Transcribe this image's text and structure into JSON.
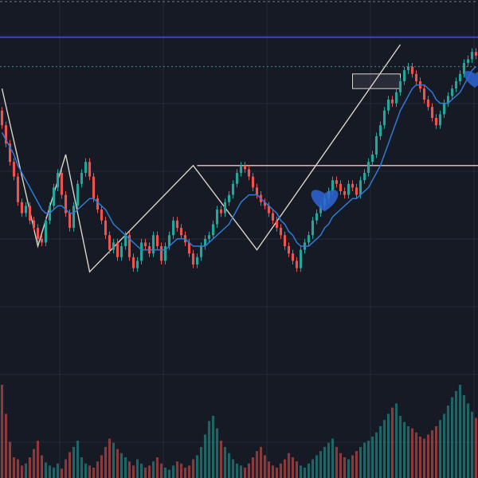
{
  "theme": {
    "background": "#161a25",
    "grid": "#262b38",
    "up": "#26a69a",
    "down": "#ef5350",
    "ma": "#2f7ad6",
    "pattern": "#d8d4c8",
    "hline_blue": "#3b5bdb",
    "hline_teal": "#3f8f87",
    "hline_pink": "#f0c6c6",
    "border_dash": "#9aa0aa",
    "heart": "#2e66d6"
  },
  "chart_data": {
    "type": "candlestick",
    "title": "",
    "xlabel": "",
    "ylabel": "",
    "ylim": [
      0,
      100
    ],
    "volume_ylim": [
      0,
      100
    ],
    "grid": true,
    "x": [
      0,
      1,
      2,
      3,
      4,
      5,
      6,
      7,
      8,
      9,
      10,
      11,
      12,
      13,
      14,
      15,
      16,
      17,
      18,
      19,
      20,
      21,
      22,
      23,
      24,
      25,
      26,
      27,
      28,
      29,
      30,
      31,
      32,
      33,
      34,
      35,
      36,
      37,
      38,
      39,
      40,
      41,
      42,
      43,
      44,
      45,
      46,
      47,
      48,
      49,
      50,
      51,
      52,
      53,
      54,
      55,
      56,
      57,
      58,
      59,
      60,
      61,
      62,
      63,
      64,
      65,
      66,
      67,
      68,
      69,
      70,
      71,
      72,
      73,
      74,
      75,
      76,
      77,
      78,
      79,
      80,
      81,
      82,
      83,
      84,
      85,
      86,
      87,
      88,
      89,
      90,
      91,
      92,
      93,
      94,
      95,
      96,
      97,
      98,
      99,
      100,
      101,
      102,
      103,
      104,
      105,
      106,
      107,
      108,
      109,
      110,
      111,
      112,
      113,
      114,
      115,
      116,
      117,
      118,
      119
    ],
    "open": [
      72,
      68,
      63,
      58,
      54,
      47,
      44,
      46,
      42,
      40,
      37,
      36,
      42,
      46,
      51,
      55,
      49,
      44,
      40,
      46,
      52,
      55,
      58,
      54,
      48,
      45,
      42,
      38,
      34,
      36,
      32,
      35,
      38,
      32,
      29,
      31,
      36,
      35,
      33,
      38,
      35,
      31,
      35,
      38,
      42,
      40,
      38,
      36,
      33,
      30,
      32,
      35,
      37,
      38,
      41,
      45,
      44,
      47,
      49,
      52,
      55,
      57,
      56,
      54,
      51,
      49,
      47,
      46,
      44,
      42,
      40,
      38,
      35,
      33,
      31,
      29,
      34,
      36,
      38,
      42,
      44,
      46,
      48,
      50,
      53,
      52,
      50,
      49,
      52,
      51,
      49,
      53,
      55,
      58,
      60,
      65,
      68,
      72,
      75,
      74,
      77,
      80,
      83,
      84,
      82,
      80,
      78,
      75,
      73,
      70,
      68,
      71,
      74,
      76,
      78,
      80,
      82,
      85,
      86,
      88
    ],
    "close": [
      68,
      63,
      58,
      54,
      47,
      44,
      46,
      42,
      40,
      37,
      36,
      42,
      46,
      51,
      55,
      49,
      44,
      40,
      46,
      52,
      55,
      58,
      54,
      48,
      45,
      42,
      38,
      34,
      36,
      32,
      35,
      38,
      32,
      29,
      31,
      36,
      35,
      33,
      38,
      35,
      31,
      35,
      38,
      42,
      40,
      38,
      36,
      33,
      30,
      32,
      35,
      37,
      38,
      41,
      45,
      44,
      47,
      49,
      52,
      55,
      57,
      56,
      54,
      51,
      49,
      47,
      46,
      44,
      42,
      40,
      38,
      35,
      33,
      31,
      29,
      34,
      36,
      38,
      42,
      44,
      46,
      48,
      50,
      53,
      52,
      50,
      49,
      52,
      51,
      49,
      53,
      55,
      58,
      60,
      65,
      68,
      72,
      75,
      74,
      77,
      80,
      83,
      84,
      82,
      80,
      78,
      75,
      73,
      70,
      68,
      71,
      74,
      76,
      78,
      80,
      82,
      85,
      86,
      88,
      87
    ],
    "high": [
      73,
      69,
      64,
      59,
      55,
      48,
      47,
      47,
      43,
      41,
      38,
      43,
      47,
      52,
      56,
      56,
      50,
      45,
      47,
      53,
      56,
      59,
      59,
      55,
      49,
      46,
      43,
      39,
      37,
      37,
      36,
      39,
      39,
      33,
      32,
      37,
      37,
      36,
      39,
      39,
      36,
      36,
      39,
      43,
      43,
      41,
      39,
      37,
      34,
      33,
      36,
      38,
      39,
      42,
      46,
      46,
      48,
      50,
      53,
      56,
      58,
      58,
      57,
      55,
      52,
      50,
      48,
      47,
      45,
      43,
      41,
      39,
      36,
      34,
      32,
      35,
      37,
      39,
      43,
      45,
      47,
      49,
      51,
      54,
      54,
      53,
      51,
      53,
      53,
      52,
      54,
      56,
      59,
      61,
      66,
      69,
      73,
      76,
      76,
      78,
      81,
      84,
      85,
      85,
      83,
      81,
      79,
      76,
      74,
      71,
      72,
      75,
      77,
      79,
      81,
      83,
      86,
      87,
      89,
      89
    ],
    "low": [
      67,
      62,
      57,
      53,
      46,
      43,
      43,
      41,
      39,
      36,
      35,
      35,
      41,
      45,
      50,
      48,
      43,
      39,
      39,
      45,
      51,
      54,
      53,
      47,
      44,
      41,
      37,
      33,
      33,
      31,
      31,
      34,
      31,
      28,
      28,
      30,
      34,
      32,
      32,
      34,
      30,
      30,
      34,
      37,
      39,
      37,
      35,
      32,
      29,
      29,
      31,
      34,
      36,
      37,
      40,
      43,
      43,
      46,
      48,
      51,
      54,
      55,
      53,
      50,
      48,
      46,
      45,
      43,
      41,
      39,
      37,
      34,
      32,
      30,
      28,
      28,
      33,
      35,
      37,
      41,
      43,
      45,
      47,
      49,
      51,
      49,
      48,
      48,
      50,
      48,
      48,
      52,
      54,
      57,
      59,
      64,
      67,
      71,
      73,
      73,
      76,
      79,
      82,
      81,
      79,
      77,
      74,
      72,
      69,
      67,
      67,
      70,
      73,
      75,
      77,
      79,
      81,
      84,
      85,
      86
    ],
    "ma": [
      66,
      64,
      62,
      60,
      57,
      55,
      53,
      51,
      49,
      47,
      45,
      44,
      44,
      45,
      46,
      46,
      45,
      44,
      44,
      45,
      46,
      47,
      48,
      48,
      47,
      46,
      45,
      43,
      41,
      40,
      39,
      38,
      37,
      36,
      35,
      34,
      34,
      34,
      34,
      34,
      34,
      34,
      35,
      36,
      37,
      37,
      37,
      36,
      35,
      35,
      35,
      35,
      36,
      37,
      38,
      39,
      40,
      41,
      43,
      45,
      47,
      48,
      49,
      49,
      49,
      48,
      47,
      46,
      45,
      44,
      42,
      41,
      39,
      38,
      36,
      35,
      35,
      35,
      36,
      37,
      38,
      40,
      41,
      43,
      44,
      45,
      46,
      47,
      48,
      48,
      49,
      50,
      51,
      53,
      55,
      57,
      60,
      63,
      66,
      69,
      72,
      74,
      76,
      78,
      79,
      79,
      79,
      78,
      77,
      75,
      74,
      74,
      74,
      75,
      76,
      77,
      79,
      81,
      83,
      84
    ],
    "volume": [
      90,
      62,
      35,
      20,
      18,
      12,
      14,
      20,
      28,
      36,
      22,
      15,
      12,
      10,
      14,
      9,
      18,
      25,
      30,
      36,
      20,
      14,
      12,
      10,
      16,
      22,
      30,
      38,
      34,
      28,
      24,
      20,
      16,
      12,
      18,
      14,
      10,
      12,
      16,
      20,
      14,
      10,
      8,
      12,
      16,
      14,
      10,
      12,
      18,
      22,
      30,
      42,
      55,
      60,
      48,
      36,
      30,
      24,
      18,
      14,
      12,
      10,
      14,
      20,
      26,
      30,
      22,
      16,
      12,
      10,
      14,
      18,
      24,
      20,
      16,
      12,
      10,
      14,
      18,
      22,
      26,
      30,
      34,
      38,
      30,
      24,
      20,
      18,
      22,
      26,
      30,
      34,
      36,
      40,
      44,
      50,
      56,
      62,
      68,
      72,
      60,
      54,
      50,
      48,
      44,
      40,
      38,
      42,
      46,
      50,
      56,
      62,
      70,
      78,
      84,
      90,
      80,
      72,
      64,
      58
    ],
    "pattern_zigzag": [
      {
        "x": 0,
        "y": 78
      },
      {
        "x": 9,
        "y": 35
      },
      {
        "x": 16,
        "y": 60
      },
      {
        "x": 22,
        "y": 28
      },
      {
        "x": 48,
        "y": 57
      },
      {
        "x": 64,
        "y": 34
      },
      {
        "x": 100,
        "y": 90
      }
    ],
    "hlines": [
      {
        "name": "",
        "y": 92,
        "style": "solid",
        "color_key": "hline_blue"
      },
      {
        "name": "",
        "y": 84,
        "style": "dotted",
        "color_key": "hline_teal"
      },
      {
        "name": "",
        "y": 57,
        "style": "solid",
        "color_key": "hline_pink",
        "from_x": 49
      }
    ],
    "range_box": {
      "x0": 88,
      "x1": 100,
      "y0": 78,
      "y1": 82
    },
    "heart_marker": {
      "x": 81,
      "y": 48
    }
  },
  "icons": [
    "heart-icon"
  ]
}
